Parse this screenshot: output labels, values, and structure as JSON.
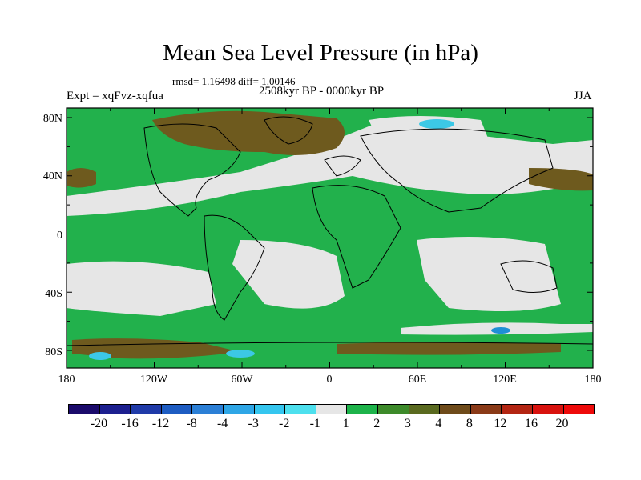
{
  "plot": {
    "title": "Mean Sea Level Pressure (in hPa)",
    "stats": "rmsd= 1.16498 diff= 1.00146",
    "experiment": "Expt = xqFvz-xqfua",
    "period": "2508kyr BP - 0000kyr BP",
    "season": "JJA"
  },
  "axes": {
    "lat_ticks": [
      "80N",
      "40N",
      "0",
      "40S",
      "80S"
    ],
    "lon_ticks": [
      "180",
      "120W",
      "60W",
      "0",
      "60E",
      "120E",
      "180"
    ]
  },
  "colorbar": {
    "labels": [
      "-20",
      "-16",
      "-12",
      "-8",
      "-4",
      "-3",
      "-2",
      "-1",
      "1",
      "2",
      "3",
      "4",
      "8",
      "12",
      "16",
      "20"
    ],
    "colors": [
      "#1a0a6b",
      "#1c1f8f",
      "#1f3aa8",
      "#1d5cc2",
      "#2b7fd6",
      "#2ea6e6",
      "#35c6ef",
      "#4de0ee",
      "#e6e6e6",
      "#1db34a",
      "#3d8a2a",
      "#5a6a20",
      "#6e4b1a",
      "#8a3a18",
      "#b32512",
      "#d8120e",
      "#ee0a0a"
    ]
  },
  "map": {
    "colors": {
      "green": "#22b14c",
      "gray": "#e6e6e6",
      "brown": "#6e5a1e",
      "cyan": "#3cc8e6",
      "blue": "#1f8fd6"
    }
  }
}
